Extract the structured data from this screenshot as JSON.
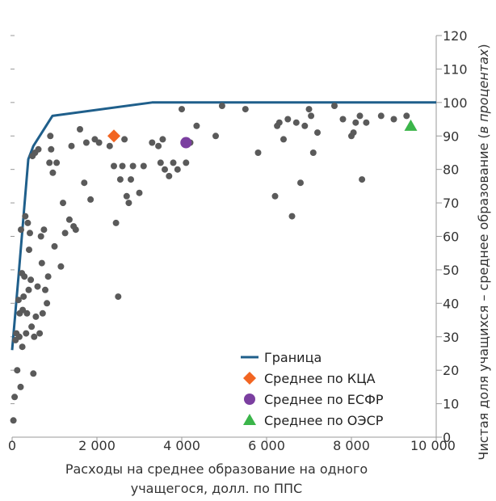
{
  "chart_data": {
    "type": "scatter",
    "xlabel_line1": "Расходы на среднее образование на одного",
    "xlabel_line2": "учащегося, долл. по ППС",
    "ylabel_prefix": "Чистая доля учащихся – среднее образование (",
    "ylabel_italic": "в процентах",
    "ylabel_suffix": ")",
    "xlim": [
      0,
      10000
    ],
    "ylim": [
      0,
      120
    ],
    "x_ticks": [
      {
        "value": 0,
        "label": "0"
      },
      {
        "value": 2000,
        "label": "2 000"
      },
      {
        "value": 4000,
        "label": "4 000"
      },
      {
        "value": 6000,
        "label": "6 000"
      },
      {
        "value": 8000,
        "label": "8 000"
      },
      {
        "value": 10000,
        "label": "10 000"
      }
    ],
    "y_ticks": [
      {
        "value": 0,
        "label": "0"
      },
      {
        "value": 10,
        "label": "10"
      },
      {
        "value": 20,
        "label": "20"
      },
      {
        "value": 30,
        "label": "30"
      },
      {
        "value": 40,
        "label": "40"
      },
      {
        "value": 50,
        "label": "50"
      },
      {
        "value": 60,
        "label": "60"
      },
      {
        "value": 70,
        "label": "70"
      },
      {
        "value": 80,
        "label": "80"
      },
      {
        "value": 90,
        "label": "90"
      },
      {
        "value": 100,
        "label": "100"
      },
      {
        "value": 110,
        "label": "110"
      },
      {
        "value": 120,
        "label": "120"
      }
    ],
    "colors": {
      "frontier": "#1f5f8b",
      "points": "#5a5a5a",
      "kca": "#f26522",
      "esfr": "#7b3fa0",
      "oecd": "#3bb54a",
      "axis": "#999999"
    },
    "frontier": {
      "name": "Граница",
      "points": [
        [
          0,
          26
        ],
        [
          150,
          48
        ],
        [
          380,
          83
        ],
        [
          500,
          87
        ],
        [
          950,
          96
        ],
        [
          3300,
          100
        ],
        [
          10000,
          100
        ]
      ]
    },
    "averages": [
      {
        "name": "Среднее по КЦА",
        "shape": "diamond",
        "x": 2400,
        "y": 90
      },
      {
        "name": "Среднее по ЕСФР",
        "shape": "circle",
        "x": 4100,
        "y": 88
      },
      {
        "name": "Среднее по ОЭСР",
        "shape": "triangle",
        "x": 9400,
        "y": 93
      }
    ],
    "scatter_points": [
      [
        30,
        5
      ],
      [
        60,
        12
      ],
      [
        80,
        29
      ],
      [
        100,
        31
      ],
      [
        120,
        20
      ],
      [
        150,
        41
      ],
      [
        170,
        30
      ],
      [
        180,
        37
      ],
      [
        200,
        15
      ],
      [
        210,
        62
      ],
      [
        230,
        49
      ],
      [
        240,
        27
      ],
      [
        250,
        38
      ],
      [
        270,
        42
      ],
      [
        290,
        48
      ],
      [
        310,
        66
      ],
      [
        330,
        31
      ],
      [
        350,
        37
      ],
      [
        370,
        64
      ],
      [
        390,
        44
      ],
      [
        400,
        56
      ],
      [
        420,
        61
      ],
      [
        440,
        47
      ],
      [
        460,
        33
      ],
      [
        480,
        84
      ],
      [
        500,
        19
      ],
      [
        520,
        30
      ],
      [
        540,
        85
      ],
      [
        560,
        36
      ],
      [
        600,
        45
      ],
      [
        620,
        86
      ],
      [
        650,
        31
      ],
      [
        680,
        60
      ],
      [
        700,
        52
      ],
      [
        720,
        37
      ],
      [
        750,
        62
      ],
      [
        780,
        44
      ],
      [
        820,
        40
      ],
      [
        850,
        48
      ],
      [
        880,
        82
      ],
      [
        900,
        90
      ],
      [
        920,
        86
      ],
      [
        960,
        79
      ],
      [
        1000,
        57
      ],
      [
        1050,
        82
      ],
      [
        1150,
        51
      ],
      [
        1200,
        70
      ],
      [
        1250,
        61
      ],
      [
        1350,
        65
      ],
      [
        1400,
        87
      ],
      [
        1450,
        63
      ],
      [
        1500,
        62
      ],
      [
        1600,
        92
      ],
      [
        1700,
        76
      ],
      [
        1750,
        88
      ],
      [
        1850,
        71
      ],
      [
        1950,
        89
      ],
      [
        2050,
        88
      ],
      [
        2300,
        87
      ],
      [
        2400,
        81
      ],
      [
        2450,
        64
      ],
      [
        2500,
        42
      ],
      [
        2550,
        77
      ],
      [
        2600,
        81
      ],
      [
        2650,
        89
      ],
      [
        2700,
        72
      ],
      [
        2750,
        70
      ],
      [
        2800,
        77
      ],
      [
        2850,
        81
      ],
      [
        3000,
        73
      ],
      [
        3100,
        81
      ],
      [
        3300,
        88
      ],
      [
        3450,
        87
      ],
      [
        3500,
        82
      ],
      [
        3550,
        89
      ],
      [
        3600,
        80
      ],
      [
        3700,
        78
      ],
      [
        3800,
        82
      ],
      [
        3900,
        80
      ],
      [
        4000,
        98
      ],
      [
        4100,
        82
      ],
      [
        4200,
        88
      ],
      [
        4350,
        93
      ],
      [
        4800,
        90
      ],
      [
        4950,
        99
      ],
      [
        5500,
        98
      ],
      [
        5800,
        85
      ],
      [
        6200,
        72
      ],
      [
        6250,
        93
      ],
      [
        6300,
        94
      ],
      [
        6400,
        89
      ],
      [
        6500,
        95
      ],
      [
        6600,
        66
      ],
      [
        6700,
        94
      ],
      [
        6800,
        76
      ],
      [
        6900,
        93
      ],
      [
        7000,
        98
      ],
      [
        7050,
        96
      ],
      [
        7100,
        85
      ],
      [
        7200,
        91
      ],
      [
        7600,
        99
      ],
      [
        7800,
        95
      ],
      [
        8000,
        90
      ],
      [
        8050,
        91
      ],
      [
        8100,
        94
      ],
      [
        8200,
        96
      ],
      [
        8250,
        77
      ],
      [
        8350,
        94
      ],
      [
        8700,
        96
      ],
      [
        9000,
        95
      ],
      [
        9300,
        96
      ]
    ]
  }
}
